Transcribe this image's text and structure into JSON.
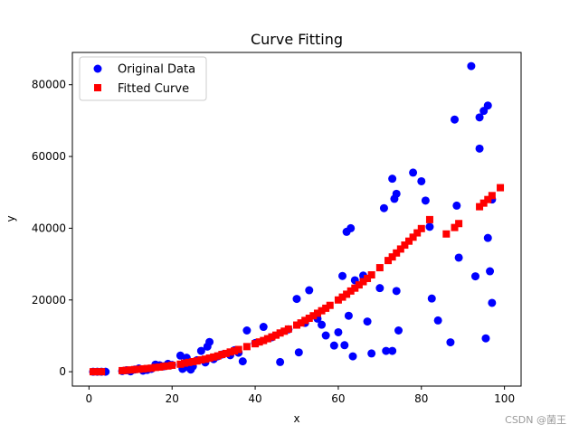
{
  "chart_data": {
    "type": "scatter",
    "title": "Curve Fitting",
    "xlabel": "x",
    "ylabel": "y",
    "xlim": [
      -4,
      104
    ],
    "ylim": [
      -4000,
      89000
    ],
    "x_ticks": [
      0,
      20,
      40,
      60,
      80,
      100
    ],
    "y_ticks": [
      0,
      20000,
      40000,
      60000,
      80000
    ],
    "grid": false,
    "legend_position": "top-left",
    "series": [
      {
        "name": "Original Data",
        "marker": "circle",
        "color": "#0000ff",
        "points": [
          [
            1,
            0
          ],
          [
            2,
            0
          ],
          [
            3,
            0
          ],
          [
            4,
            0
          ],
          [
            8,
            200
          ],
          [
            9,
            400
          ],
          [
            10,
            100
          ],
          [
            11,
            600
          ],
          [
            12,
            900
          ],
          [
            13,
            300
          ],
          [
            14,
            500
          ],
          [
            15,
            800
          ],
          [
            16,
            2000
          ],
          [
            17,
            1800
          ],
          [
            18,
            1500
          ],
          [
            19,
            2200
          ],
          [
            20,
            1900
          ],
          [
            22,
            4500
          ],
          [
            22.5,
            800
          ],
          [
            23,
            1200
          ],
          [
            23.5,
            3900
          ],
          [
            24,
            2500
          ],
          [
            24.5,
            600
          ],
          [
            25,
            1500
          ],
          [
            26,
            3200
          ],
          [
            27,
            5800
          ],
          [
            28,
            2600
          ],
          [
            28.5,
            7000
          ],
          [
            29,
            8300
          ],
          [
            30,
            3500
          ],
          [
            31,
            4300
          ],
          [
            32,
            4800
          ],
          [
            34,
            4600
          ],
          [
            35,
            6000
          ],
          [
            36,
            5300
          ],
          [
            37,
            2900
          ],
          [
            38,
            11500
          ],
          [
            40,
            8000
          ],
          [
            42,
            12500
          ],
          [
            44,
            9600
          ],
          [
            46,
            2700
          ],
          [
            48,
            11800
          ],
          [
            50,
            20300
          ],
          [
            50.5,
            5400
          ],
          [
            52,
            13600
          ],
          [
            53,
            22700
          ],
          [
            55,
            14800
          ],
          [
            56,
            13100
          ],
          [
            57,
            10100
          ],
          [
            59,
            7300
          ],
          [
            60,
            11000
          ],
          [
            61,
            26700
          ],
          [
            61.5,
            7400
          ],
          [
            62,
            39000
          ],
          [
            62.5,
            15600
          ],
          [
            63,
            40000
          ],
          [
            63.5,
            4300
          ],
          [
            64,
            25500
          ],
          [
            66,
            26800
          ],
          [
            67,
            14000
          ],
          [
            68,
            5100
          ],
          [
            70,
            23300
          ],
          [
            71,
            45600
          ],
          [
            71.5,
            5800
          ],
          [
            73,
            53800
          ],
          [
            73.5,
            48200
          ],
          [
            74,
            49600
          ],
          [
            74.5,
            11500
          ],
          [
            74,
            22500
          ],
          [
            73,
            5800
          ],
          [
            78,
            55500
          ],
          [
            80,
            53100
          ],
          [
            81,
            47700
          ],
          [
            82,
            40400
          ],
          [
            82.5,
            20400
          ],
          [
            84,
            14300
          ],
          [
            87,
            8200
          ],
          [
            88,
            70300
          ],
          [
            88.5,
            46300
          ],
          [
            89,
            31800
          ],
          [
            92,
            85200
          ],
          [
            93,
            26600
          ],
          [
            94,
            70900
          ],
          [
            94,
            62200
          ],
          [
            95,
            72700
          ],
          [
            95.5,
            9300
          ],
          [
            96,
            74200
          ],
          [
            96,
            37300
          ],
          [
            96.5,
            28000
          ],
          [
            97,
            19200
          ],
          [
            97,
            48000
          ]
        ]
      },
      {
        "name": "Fitted Curve",
        "marker": "square",
        "color": "#ff0000",
        "points": [
          [
            1,
            0
          ],
          [
            2,
            0
          ],
          [
            3,
            0
          ],
          [
            8,
            300
          ],
          [
            9,
            400
          ],
          [
            10,
            500
          ],
          [
            11,
            600
          ],
          [
            12,
            700
          ],
          [
            13,
            800
          ],
          [
            14,
            900
          ],
          [
            15,
            1000
          ],
          [
            16,
            1200
          ],
          [
            17,
            1300
          ],
          [
            18,
            1500
          ],
          [
            19,
            1600
          ],
          [
            20,
            1800
          ],
          [
            22,
            2100
          ],
          [
            23,
            2400
          ],
          [
            24,
            2600
          ],
          [
            25,
            2800
          ],
          [
            26,
            3000
          ],
          [
            27,
            3300
          ],
          [
            28,
            3500
          ],
          [
            29,
            3800
          ],
          [
            30,
            4100
          ],
          [
            31,
            4400
          ],
          [
            32,
            4800
          ],
          [
            33,
            5100
          ],
          [
            34,
            5500
          ],
          [
            35,
            5800
          ],
          [
            36,
            6200
          ],
          [
            38,
            7000
          ],
          [
            40,
            7800
          ],
          [
            41,
            8300
          ],
          [
            42,
            8700
          ],
          [
            43,
            9200
          ],
          [
            44,
            9700
          ],
          [
            45,
            10200
          ],
          [
            46,
            10800
          ],
          [
            47,
            11300
          ],
          [
            48,
            11900
          ],
          [
            50,
            13000
          ],
          [
            51,
            13600
          ],
          [
            52,
            14300
          ],
          [
            53,
            14900
          ],
          [
            54,
            15600
          ],
          [
            55,
            16300
          ],
          [
            56,
            17000
          ],
          [
            57,
            17700
          ],
          [
            58,
            18500
          ],
          [
            60,
            20000
          ],
          [
            61,
            20800
          ],
          [
            62,
            21600
          ],
          [
            63,
            22500
          ],
          [
            64,
            23300
          ],
          [
            65,
            24200
          ],
          [
            66,
            25100
          ],
          [
            67,
            26000
          ],
          [
            68,
            27000
          ],
          [
            70,
            29000
          ],
          [
            72,
            31000
          ],
          [
            73,
            32000
          ],
          [
            74,
            33100
          ],
          [
            75,
            34200
          ],
          [
            76,
            35300
          ],
          [
            77,
            36400
          ],
          [
            78,
            37500
          ],
          [
            79,
            38700
          ],
          [
            80,
            39900
          ],
          [
            82,
            42400
          ],
          [
            86,
            38400
          ],
          [
            88,
            40200
          ],
          [
            89,
            41300
          ],
          [
            94,
            46000
          ],
          [
            95,
            47000
          ],
          [
            96,
            48000
          ],
          [
            97,
            49100
          ],
          [
            99,
            51300
          ]
        ]
      }
    ]
  },
  "watermark": "CSDN @菌王"
}
